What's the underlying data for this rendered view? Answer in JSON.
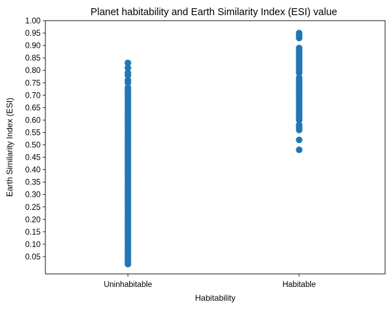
{
  "chart_data": {
    "type": "scatter",
    "title": "Planet habitability and Earth Similarity Index (ESI) value",
    "xlabel": "Habitability",
    "ylabel": "Earth Similarity Index (ESI)",
    "categories": [
      "Uninhabitable",
      "Habitable"
    ],
    "ylim": [
      0.0,
      1.0
    ],
    "yticks": [
      "0.05",
      "0.10",
      "0.15",
      "0.20",
      "0.25",
      "0.30",
      "0.35",
      "0.40",
      "0.45",
      "0.50",
      "0.55",
      "0.60",
      "0.65",
      "0.70",
      "0.75",
      "0.80",
      "0.85",
      "0.90",
      "0.95",
      "1.00"
    ],
    "marker_color": "#1f77b4",
    "grid": false,
    "series": [
      {
        "values": [
          [
            0,
            0.02
          ],
          [
            0,
            0.03
          ],
          [
            0,
            0.04
          ],
          [
            0,
            0.05
          ],
          [
            0,
            0.06
          ],
          [
            0,
            0.07
          ],
          [
            0,
            0.08
          ],
          [
            0,
            0.09
          ],
          [
            0,
            0.1
          ],
          [
            0,
            0.11
          ],
          [
            0,
            0.12
          ],
          [
            0,
            0.13
          ],
          [
            0,
            0.14
          ],
          [
            0,
            0.15
          ],
          [
            0,
            0.16
          ],
          [
            0,
            0.17
          ],
          [
            0,
            0.18
          ],
          [
            0,
            0.19
          ],
          [
            0,
            0.2
          ],
          [
            0,
            0.21
          ],
          [
            0,
            0.22
          ],
          [
            0,
            0.23
          ],
          [
            0,
            0.24
          ],
          [
            0,
            0.25
          ],
          [
            0,
            0.26
          ],
          [
            0,
            0.27
          ],
          [
            0,
            0.28
          ],
          [
            0,
            0.29
          ],
          [
            0,
            0.3
          ],
          [
            0,
            0.31
          ],
          [
            0,
            0.32
          ],
          [
            0,
            0.33
          ],
          [
            0,
            0.34
          ],
          [
            0,
            0.35
          ],
          [
            0,
            0.36
          ],
          [
            0,
            0.37
          ],
          [
            0,
            0.38
          ],
          [
            0,
            0.39
          ],
          [
            0,
            0.4
          ],
          [
            0,
            0.41
          ],
          [
            0,
            0.42
          ],
          [
            0,
            0.43
          ],
          [
            0,
            0.44
          ],
          [
            0,
            0.45
          ],
          [
            0,
            0.46
          ],
          [
            0,
            0.47
          ],
          [
            0,
            0.48
          ],
          [
            0,
            0.49
          ],
          [
            0,
            0.5
          ],
          [
            0,
            0.51
          ],
          [
            0,
            0.52
          ],
          [
            0,
            0.53
          ],
          [
            0,
            0.54
          ],
          [
            0,
            0.55
          ],
          [
            0,
            0.56
          ],
          [
            0,
            0.57
          ],
          [
            0,
            0.58
          ],
          [
            0,
            0.59
          ],
          [
            0,
            0.6
          ],
          [
            0,
            0.61
          ],
          [
            0,
            0.62
          ],
          [
            0,
            0.63
          ],
          [
            0,
            0.64
          ],
          [
            0,
            0.65
          ],
          [
            0,
            0.66
          ],
          [
            0,
            0.67
          ],
          [
            0,
            0.68
          ],
          [
            0,
            0.69
          ],
          [
            0,
            0.7
          ],
          [
            0,
            0.71
          ],
          [
            0,
            0.72
          ],
          [
            0,
            0.73
          ],
          [
            0,
            0.75
          ],
          [
            0,
            0.76
          ],
          [
            0,
            0.78
          ],
          [
            0,
            0.79
          ],
          [
            0,
            0.81
          ],
          [
            0,
            0.83
          ],
          [
            1,
            0.48
          ],
          [
            1,
            0.52
          ],
          [
            1,
            0.56
          ],
          [
            1,
            0.57
          ],
          [
            1,
            0.58
          ],
          [
            1,
            0.6
          ],
          [
            1,
            0.61
          ],
          [
            1,
            0.62
          ],
          [
            1,
            0.63
          ],
          [
            1,
            0.64
          ],
          [
            1,
            0.65
          ],
          [
            1,
            0.66
          ],
          [
            1,
            0.67
          ],
          [
            1,
            0.68
          ],
          [
            1,
            0.69
          ],
          [
            1,
            0.7
          ],
          [
            1,
            0.71
          ],
          [
            1,
            0.72
          ],
          [
            1,
            0.73
          ],
          [
            1,
            0.74
          ],
          [
            1,
            0.75
          ],
          [
            1,
            0.76
          ],
          [
            1,
            0.77
          ],
          [
            1,
            0.79
          ],
          [
            1,
            0.8
          ],
          [
            1,
            0.81
          ],
          [
            1,
            0.82
          ],
          [
            1,
            0.83
          ],
          [
            1,
            0.84
          ],
          [
            1,
            0.85
          ],
          [
            1,
            0.86
          ],
          [
            1,
            0.87
          ],
          [
            1,
            0.88
          ],
          [
            1,
            0.89
          ],
          [
            1,
            0.93
          ],
          [
            1,
            0.94
          ],
          [
            1,
            0.95
          ]
        ]
      }
    ]
  }
}
